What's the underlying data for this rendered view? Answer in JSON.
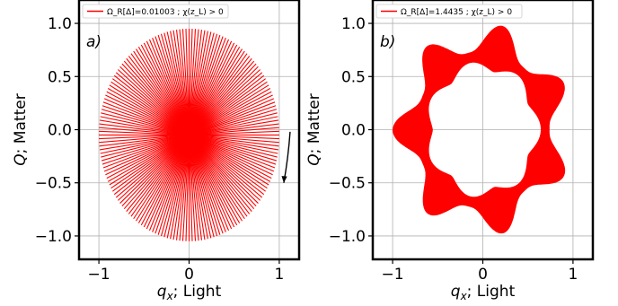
{
  "figure": {
    "colors": {
      "curve": "#ff0000",
      "axes": "#000000",
      "grid": "#b0b0b0",
      "background": "#ffffff"
    }
  },
  "chart_data": [
    {
      "type": "line",
      "panel_label": "a)",
      "xlabel_var": "q",
      "xlabel_sub": "x",
      "xlabel_rest": "; Light",
      "ylabel": "Q; Matter",
      "xlim": [
        -1.22,
        1.22
      ],
      "ylim": [
        -1.22,
        1.22
      ],
      "xticks": [
        -1,
        0,
        1
      ],
      "yticks": [
        -1.0,
        -0.5,
        0.0,
        0.5,
        1.0
      ],
      "xtick_labels": [
        "−1",
        "0",
        "1"
      ],
      "ytick_labels": [
        "−1.0",
        "−0.5",
        "0.0",
        "0.5",
        "1.0"
      ],
      "grid": true,
      "legend_position": "top-left",
      "series": [
        {
          "name": "ΩR[Δ]=0.01003 ; χ(zL) > 0",
          "legend": "Ω_R[Δ]=0.01003 ; χ(z_L) > 0",
          "color": "#ff0000",
          "pattern": "radial-lines",
          "n_lines": 90,
          "center": [
            0.0,
            -0.05
          ],
          "radius": 1.0
        }
      ],
      "annotation": {
        "type": "arrow",
        "direction": "clockwise",
        "from": [
          1.12,
          -0.02
        ],
        "to": [
          1.05,
          -0.5
        ]
      }
    },
    {
      "type": "line",
      "panel_label": "b)",
      "xlabel_var": "q",
      "xlabel_sub": "x",
      "xlabel_rest": "; Light",
      "ylabel": "Q; Matter",
      "xlim": [
        -1.22,
        1.22
      ],
      "ylim": [
        -1.22,
        1.22
      ],
      "xticks": [
        -1,
        0,
        1
      ],
      "yticks": [
        -1.0,
        -0.5,
        0.0,
        0.5,
        1.0
      ],
      "xtick_labels": [
        "−1",
        "0",
        "1"
      ],
      "ytick_labels": [
        "−1.0",
        "−0.5",
        "0.0",
        "0.5",
        "1.0"
      ],
      "grid": true,
      "legend_position": "top-left",
      "series": [
        {
          "name": "ΩR[Δ]=1.4435 ; χ(zL) > 0",
          "legend": "Ω_R[Δ]=1.4435 ; χ(z_L) > 0",
          "color": "#ff0000",
          "pattern": "seven-point-star-band",
          "n_cusps": 7,
          "outer_radius": 1.0,
          "inner_radius": 0.63
        }
      ]
    }
  ]
}
